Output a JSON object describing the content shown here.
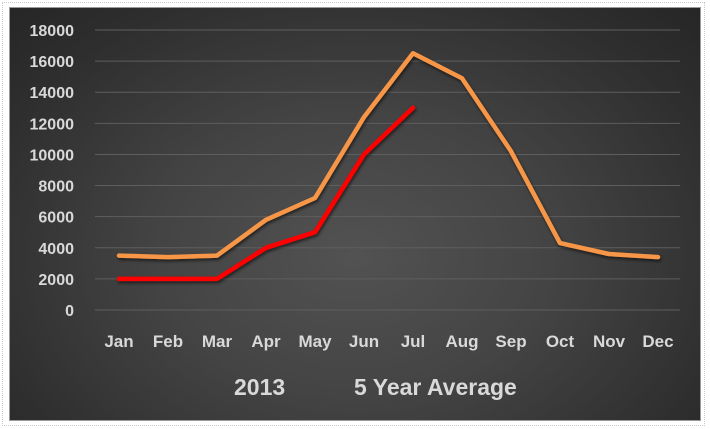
{
  "chart_data": {
    "type": "line",
    "title": "",
    "xlabel": "",
    "ylabel": "",
    "categories": [
      "Jan",
      "Feb",
      "Mar",
      "Apr",
      "May",
      "Jun",
      "Jul",
      "Aug",
      "Sep",
      "Oct",
      "Nov",
      "Dec"
    ],
    "series": [
      {
        "name": "2013",
        "color": "#ff0000",
        "values": [
          2000,
          2000,
          2000,
          4000,
          5000,
          10000,
          13000,
          null,
          null,
          null,
          null,
          null
        ]
      },
      {
        "name": "5 Year Average",
        "color": "#f79646",
        "values": [
          3500,
          3400,
          3500,
          5800,
          7200,
          12400,
          16500,
          14900,
          10200,
          4300,
          3600,
          3400
        ]
      }
    ],
    "ylim": [
      0,
      18000
    ],
    "yticks": [
      "0",
      "2000",
      "4000",
      "6000",
      "8000",
      "10000",
      "12000",
      "14000",
      "16000",
      "18000"
    ],
    "grid": true,
    "legend_position": "bottom",
    "background": "#3a3a3a"
  },
  "legend": {
    "item0": "2013",
    "item1": "5 Year Average"
  }
}
